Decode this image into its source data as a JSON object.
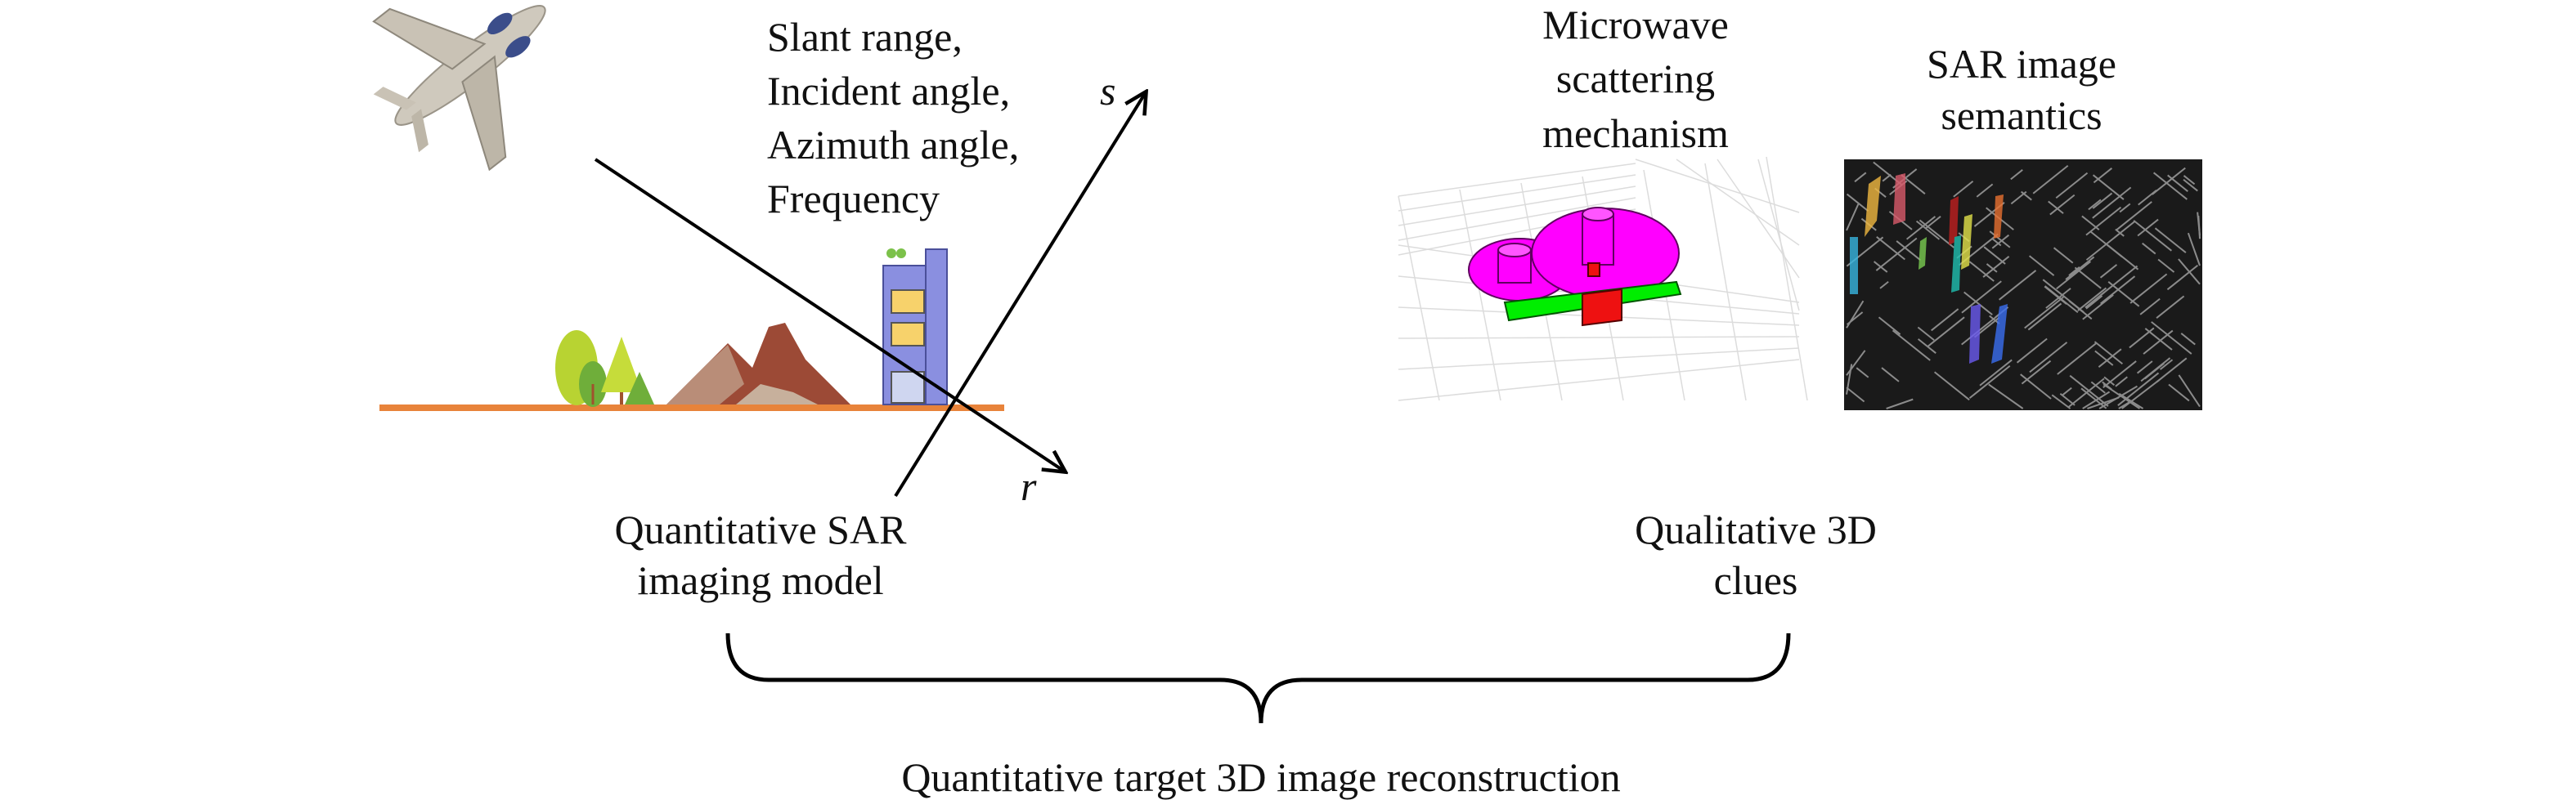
{
  "imaging": {
    "params": [
      "Slant range,",
      "Incident angle,",
      "Azimuth angle,",
      "Frequency"
    ],
    "axis_s": "s",
    "axis_r": "r",
    "caption": [
      "Quantitative SAR",
      "imaging model"
    ]
  },
  "clues": {
    "scattering_title": [
      "Microwave",
      "scattering",
      "mechanism"
    ],
    "semantics_title": [
      "SAR image",
      "semantics"
    ],
    "caption": [
      "Qualitative 3D",
      "clues"
    ]
  },
  "result": {
    "caption": "Quantitative target 3D image reconstruction"
  },
  "colors": {
    "ground": "#e8833a",
    "scatterer_cylinder": "#ff00ff",
    "scatterer_dihedral": "#00ee00",
    "scatterer_top": "#ee1111",
    "building": "#8a8fe0",
    "window": "#f7d26b",
    "sar_background": "#1a1a1a"
  },
  "icons": [
    "airplane-icon",
    "tree-icon",
    "mountain-icon",
    "building-icon"
  ]
}
